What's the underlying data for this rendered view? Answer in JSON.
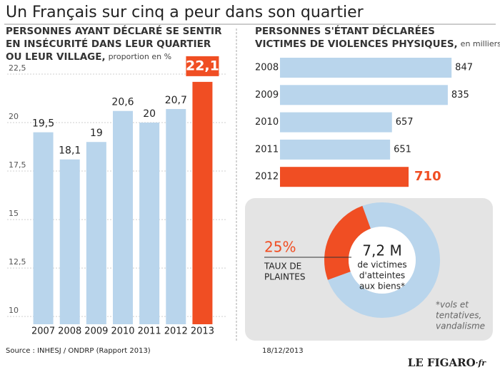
{
  "header": {
    "title": "Un Français sur cinq a peur dans son quartier"
  },
  "chart_data": [
    {
      "type": "bar",
      "title_lines": [
        "PERSONNES AYANT DÉCLARÉ SE SENTIR",
        "EN INSÉCURITÉ DANS LEUR QUARTIER",
        "OU LEUR VILLAGE,"
      ],
      "subtitle": "proportion en %",
      "categories": [
        "2007",
        "2008",
        "2009",
        "2010",
        "2011",
        "2012",
        "2013"
      ],
      "values": [
        19.5,
        18.1,
        19,
        20.6,
        20,
        20.7,
        22.1
      ],
      "value_labels": [
        "19,5",
        "18,1",
        "19",
        "20,6",
        "20",
        "20,7",
        "22,1"
      ],
      "colors": [
        "#b9d5ec",
        "#b9d5ec",
        "#b9d5ec",
        "#b9d5ec",
        "#b9d5ec",
        "#b9d5ec",
        "#f04e23"
      ],
      "ylim": [
        9.6,
        22.5
      ],
      "yticks": [
        10,
        {
          "value": 12.5,
          "label": "12,5"
        },
        15,
        {
          "value": 17.5,
          "label": "17,5"
        },
        20,
        {
          "value": 22.5,
          "label": "22,5"
        }
      ],
      "grid": true
    },
    {
      "type": "hbar",
      "title_lines": [
        "PERSONNES S'ÉTANT DÉCLARÉES",
        "VICTIMES DE VIOLENCES PHYSIQUES,"
      ],
      "subtitle": "en milliers",
      "categories": [
        "2008",
        "2009",
        "2010",
        "2011",
        "2012"
      ],
      "values": [
        847,
        835,
        657,
        651,
        710
      ],
      "colors": [
        "#b9d5ec",
        "#b9d5ec",
        "#b9d5ec",
        "#b9d5ec",
        "#f04e23"
      ],
      "xlim": [
        300,
        850
      ]
    },
    {
      "type": "pie",
      "values": [
        25
      ],
      "value_labels": [
        "25%"
      ],
      "label_lines": [
        "TAUX DE",
        "PLAINTES"
      ],
      "colors": [
        "#f04e23"
      ],
      "center_value": "7,2 M",
      "center_lines": [
        "de victimes",
        "d'atteintes",
        "aux biens*"
      ],
      "note_lines": [
        "*vols et",
        "tentatives,",
        "vandalisme"
      ]
    }
  ],
  "footer": {
    "source": "Source : INHESJ / ONDRP (Rapport 2013)",
    "date": "18/12/2013",
    "logo": "LE FIGARO",
    "logo_suffix": "·fr"
  }
}
